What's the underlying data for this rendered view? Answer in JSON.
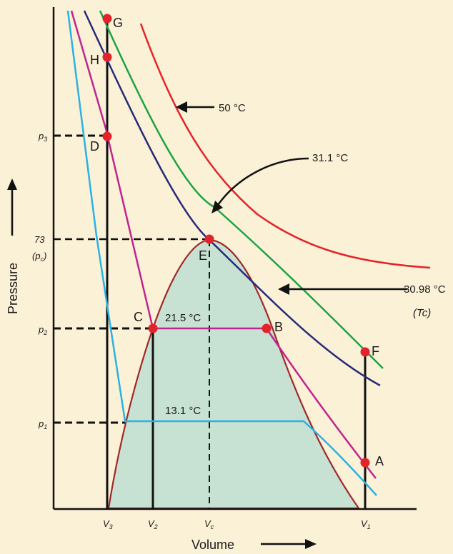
{
  "axes": {
    "y_title": "Pressure",
    "x_title": "Volume"
  },
  "y_ticks": {
    "p3": "p3",
    "pc_value": "73",
    "pc_symbol": "(pc)",
    "p2": "p2",
    "p1": "p1"
  },
  "x_ticks": {
    "v3": "V3",
    "v2": "V2",
    "vc": "Vc",
    "v1": "V1"
  },
  "isotherms": {
    "t50": "50 °C",
    "t31_1": "31.1 °C",
    "t30_98": "30.98 °C",
    "tc": "(Tc)",
    "t21_5": "21.5 °C",
    "t13_1": "13.1 °C"
  },
  "points": [
    "G",
    "H",
    "D",
    "E",
    "C",
    "B",
    "F",
    "A"
  ],
  "colors": {
    "background": "#fbf1d6",
    "dome_fill": "#c7e2d3",
    "dome_stroke": "#a0282c",
    "red": "#e2232b",
    "green": "#1ba345",
    "navy": "#27287a",
    "magenta": "#c1238f",
    "cyan": "#2ab1e6",
    "point": "#e2232b"
  }
}
